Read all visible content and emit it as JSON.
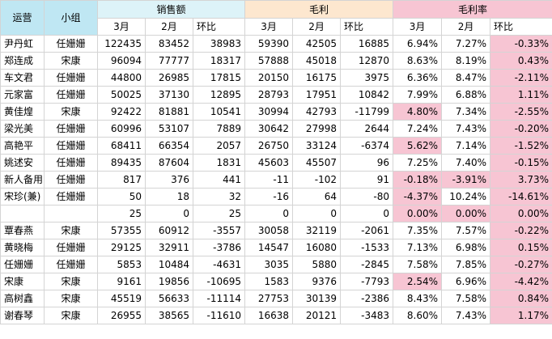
{
  "headers": {
    "col1": "运营",
    "col2": "小组",
    "group_sales": "销售额",
    "group_profit": "毛利",
    "group_margin": "毛利率",
    "sub": [
      "3月",
      "2月",
      "环比",
      "3月",
      "2月",
      "环比",
      "3月",
      "2月",
      "环比"
    ]
  },
  "rows": [
    {
      "name": "尹丹虹",
      "group": "任姗姗",
      "cells": [
        "122435",
        "83452",
        "38983",
        "59390",
        "42505",
        "16885",
        "6.94%",
        "7.27%",
        "-0.33%"
      ]
    },
    {
      "name": "郑连成",
      "group": "宋康",
      "cells": [
        "96094",
        "77777",
        "18317",
        "57888",
        "45018",
        "12870",
        "8.63%",
        "8.19%",
        "0.43%"
      ]
    },
    {
      "name": "车文君",
      "group": "任姗姗",
      "cells": [
        "44800",
        "26985",
        "17815",
        "20150",
        "16175",
        "3975",
        "6.36%",
        "8.47%",
        "-2.11%"
      ]
    },
    {
      "name": "元家富",
      "group": "任姗姗",
      "cells": [
        "50025",
        "37130",
        "12895",
        "28793",
        "17951",
        "10842",
        "7.99%",
        "6.88%",
        "1.11%"
      ]
    },
    {
      "name": "黄佳煌",
      "group": "宋康",
      "cells": [
        "92422",
        "81881",
        "10541",
        "30994",
        "42793",
        "-11799",
        "4.80%",
        "7.34%",
        "-2.55%"
      ]
    },
    {
      "name": "梁光美",
      "group": "任姗姗",
      "cells": [
        "60996",
        "53107",
        "7889",
        "30642",
        "27998",
        "2644",
        "7.24%",
        "7.43%",
        "-0.20%"
      ]
    },
    {
      "name": "高艳平",
      "group": "任姗姗",
      "cells": [
        "68411",
        "66354",
        "2057",
        "26750",
        "33124",
        "-6374",
        "5.62%",
        "7.14%",
        "-1.52%"
      ]
    },
    {
      "name": "姚述安",
      "group": "任姗姗",
      "cells": [
        "89435",
        "87604",
        "1831",
        "45603",
        "45507",
        "96",
        "7.25%",
        "7.40%",
        "-0.15%"
      ]
    },
    {
      "name": "新人备用",
      "group": "任姗姗",
      "cells": [
        "817",
        "376",
        "441",
        "-11",
        "-102",
        "91",
        "-0.18%",
        "-3.91%",
        "3.73%"
      ]
    },
    {
      "name": "宋珍(兼)",
      "group": "任姗姗",
      "cells": [
        "50",
        "18",
        "32",
        "-16",
        "64",
        "-80",
        "-4.37%",
        "10.24%",
        "-14.61%"
      ]
    },
    {
      "name": "",
      "group": "",
      "cells": [
        "25",
        "0",
        "25",
        "0",
        "0",
        "0",
        "0.00%",
        "0.00%",
        "0.00%"
      ]
    },
    {
      "name": "覃春燕",
      "group": "宋康",
      "cells": [
        "57355",
        "60912",
        "-3557",
        "30058",
        "32119",
        "-2061",
        "7.35%",
        "7.57%",
        "-0.22%"
      ]
    },
    {
      "name": "黄晓梅",
      "group": "任姗姗",
      "cells": [
        "29125",
        "32911",
        "-3786",
        "14547",
        "16080",
        "-1533",
        "7.13%",
        "6.98%",
        "0.15%"
      ]
    },
    {
      "name": "任姗姗",
      "group": "任姗姗",
      "cells": [
        "5853",
        "10484",
        "-4631",
        "3035",
        "5880",
        "-2845",
        "7.58%",
        "7.85%",
        "-0.27%"
      ]
    },
    {
      "name": "宋康",
      "group": "宋康",
      "cells": [
        "9161",
        "19856",
        "-10695",
        "1583",
        "9376",
        "-7793",
        "2.54%",
        "6.96%",
        "-4.42%"
      ]
    },
    {
      "name": "高树鑫",
      "group": "宋康",
      "cells": [
        "45519",
        "56633",
        "-11114",
        "27753",
        "30139",
        "-2386",
        "8.43%",
        "7.58%",
        "0.84%"
      ]
    },
    {
      "name": "谢春琴",
      "group": "宋康",
      "cells": [
        "26955",
        "38565",
        "-11610",
        "16638",
        "20121",
        "-3483",
        "8.60%",
        "7.43%",
        "1.17%"
      ]
    }
  ],
  "highlights": [
    [
      0,
      8
    ],
    [
      1,
      8
    ],
    [
      2,
      8
    ],
    [
      3,
      8
    ],
    [
      4,
      6
    ],
    [
      4,
      8
    ],
    [
      5,
      8
    ],
    [
      6,
      6
    ],
    [
      6,
      8
    ],
    [
      7,
      8
    ],
    [
      8,
      6
    ],
    [
      8,
      7
    ],
    [
      8,
      8
    ],
    [
      9,
      6
    ],
    [
      9,
      8
    ],
    [
      10,
      6
    ],
    [
      10,
      7
    ],
    [
      10,
      8
    ],
    [
      11,
      8
    ],
    [
      12,
      8
    ],
    [
      13,
      8
    ],
    [
      14,
      6
    ],
    [
      14,
      8
    ],
    [
      15,
      8
    ],
    [
      16,
      8
    ]
  ],
  "colors": {
    "header_blue": "#bfe7f3",
    "header_cyan": "#ddf3f8",
    "header_peach": "#fde7cf",
    "header_pink": "#f7c5d3",
    "highlight_pink": "#f7c5d3",
    "grid": "#d4d4d4"
  }
}
